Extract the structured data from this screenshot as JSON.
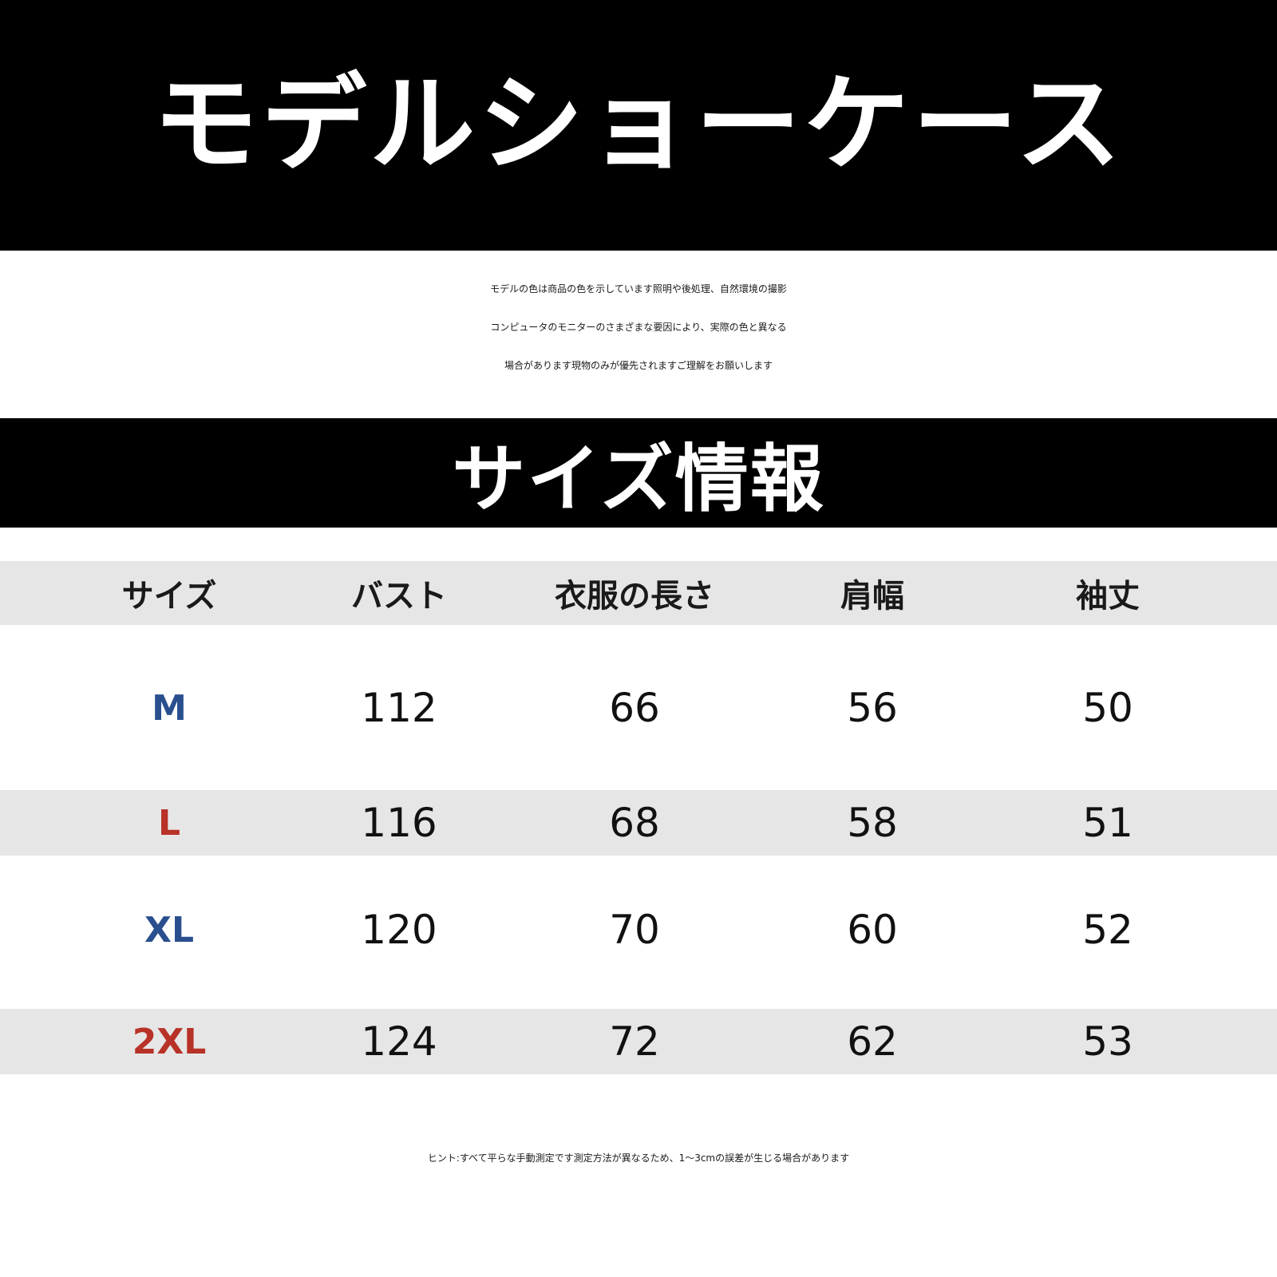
{
  "showcase": {
    "title": "モデルショーケース",
    "notice_lines": [
      "モデルの色は商品の色を示しています照明や後処理、自然環境の撮影",
      "コンピュータのモニターのさまざまな要因により、実際の色と異なる",
      "場合があります現物のみが優先されますご理解をお願いします"
    ]
  },
  "size_info": {
    "title": "サイズ情報",
    "headers": [
      "サイズ",
      "バスト",
      "衣服の長さ",
      "肩幅",
      "袖丈"
    ],
    "rows": [
      {
        "size": "M",
        "bust": "112",
        "length": "66",
        "shoulder": "56",
        "sleeve": "50"
      },
      {
        "size": "L",
        "bust": "116",
        "length": "68",
        "shoulder": "58",
        "sleeve": "51"
      },
      {
        "size": "XL",
        "bust": "120",
        "length": "70",
        "shoulder": "60",
        "sleeve": "52"
      },
      {
        "size": "2XL",
        "bust": "124",
        "length": "72",
        "shoulder": "62",
        "sleeve": "53"
      }
    ]
  },
  "hint": "ヒント:すべて平らな手動測定です測定方法が異なるため、1〜3cmの誤差が生じる場合があります",
  "colors": {
    "banner": "#000000",
    "row_shade": "#e6e6e6",
    "size_blue": "#2a4f8f",
    "size_red": "#b83227"
  }
}
